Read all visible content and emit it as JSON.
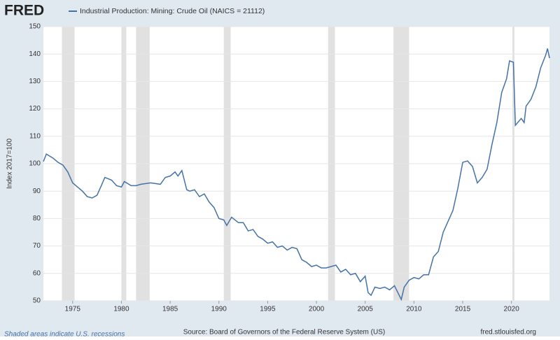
{
  "logo": "FRED",
  "chart_data": {
    "type": "line",
    "ylabel": "Index 2017=100",
    "note": "Shaded areas indicate U.S. recessions",
    "source": "Source: Board of Governors of the Federal Reserve System (US)",
    "site": "fred.stlouisfed.org",
    "xlim": [
      1972,
      2023.9
    ],
    "xticks": [
      1975,
      1980,
      1985,
      1990,
      1995,
      2000,
      2005,
      2010,
      2015,
      2020
    ],
    "ylim": [
      50,
      150
    ],
    "yticks": [
      50,
      60,
      70,
      80,
      90,
      100,
      110,
      120,
      130,
      140,
      150
    ],
    "grid": true,
    "recessions": [
      [
        1973.9,
        1975.2
      ],
      [
        1980,
        1980.5
      ],
      [
        1981.5,
        1982.9
      ],
      [
        1990.5,
        1991.2
      ],
      [
        2001.2,
        2001.9
      ],
      [
        2007.9,
        2009.5
      ],
      [
        2020.1,
        2020.3
      ]
    ],
    "recession_color": "#e1e1e1",
    "x": [
      1972,
      1972.3,
      1973,
      1973.5,
      1974,
      1974.5,
      1975,
      1975.5,
      1976,
      1976.5,
      1977,
      1977.5,
      1978,
      1978.3,
      1979,
      1979.5,
      1980,
      1980.3,
      1981,
      1981.5,
      1982,
      1983,
      1984,
      1984.5,
      1985,
      1985.5,
      1985.8,
      1986.2,
      1986.7,
      1987,
      1987.5,
      1988,
      1988.5,
      1989,
      1989.5,
      1990,
      1990.5,
      1990.8,
      1991.3,
      1992,
      1992.5,
      1993,
      1993.5,
      1994,
      1994.5,
      1995,
      1995.5,
      1996,
      1996.5,
      1997,
      1997.5,
      1998,
      1998.5,
      1999,
      1999.5,
      2000,
      2000.5,
      2001,
      2001.5,
      2002,
      2002.5,
      2003,
      2003.5,
      2004,
      2004.5,
      2005,
      2005.3,
      2005.6,
      2006,
      2006.5,
      2007,
      2007.5,
      2008,
      2008.7,
      2009,
      2009.5,
      2010,
      2010.5,
      2011,
      2011.5,
      2012,
      2012.5,
      2013,
      2013.5,
      2014,
      2014.5,
      2015,
      2015.5,
      2016,
      2016.5,
      2017,
      2017.5,
      2018,
      2018.5,
      2019,
      2019.5,
      2019.8,
      2020.2,
      2020.4,
      2021,
      2021.3,
      2021.5,
      2022,
      2022.5,
      2023,
      2023.5,
      2023.7,
      2023.9
    ],
    "series": [
      {
        "name": "Industrial Production: Mining: Crude Oil (NAICS = 21112)",
        "color": "#4572a7",
        "values": [
          100.8,
          103.5,
          102,
          100.5,
          99.5,
          97,
          93,
          91.5,
          90,
          88,
          87.5,
          88.5,
          92.5,
          95,
          94,
          92,
          91.5,
          93.5,
          92,
          92,
          92.5,
          93,
          92.5,
          95,
          95.5,
          97,
          95.5,
          97.5,
          90.5,
          90,
          90.5,
          88,
          89,
          86,
          84,
          80,
          79.5,
          77.5,
          80.5,
          78.5,
          78.5,
          75.5,
          76,
          73.5,
          72.5,
          71,
          71.5,
          69.5,
          70,
          68.5,
          69.5,
          69,
          65,
          64,
          62.5,
          63,
          62,
          62,
          62.5,
          63,
          60.5,
          61.5,
          59.5,
          60,
          57,
          59,
          53,
          52,
          55,
          54.5,
          55,
          54,
          55.5,
          50.5,
          55,
          57.5,
          58.5,
          58,
          59.5,
          59.5,
          66,
          68,
          75,
          79,
          83,
          91,
          100.5,
          101,
          99,
          93,
          95,
          98,
          107,
          115,
          126,
          131,
          137.5,
          137,
          114,
          116.5,
          115,
          121,
          123.5,
          128,
          135,
          139.5,
          142,
          138.5
        ]
      }
    ]
  }
}
